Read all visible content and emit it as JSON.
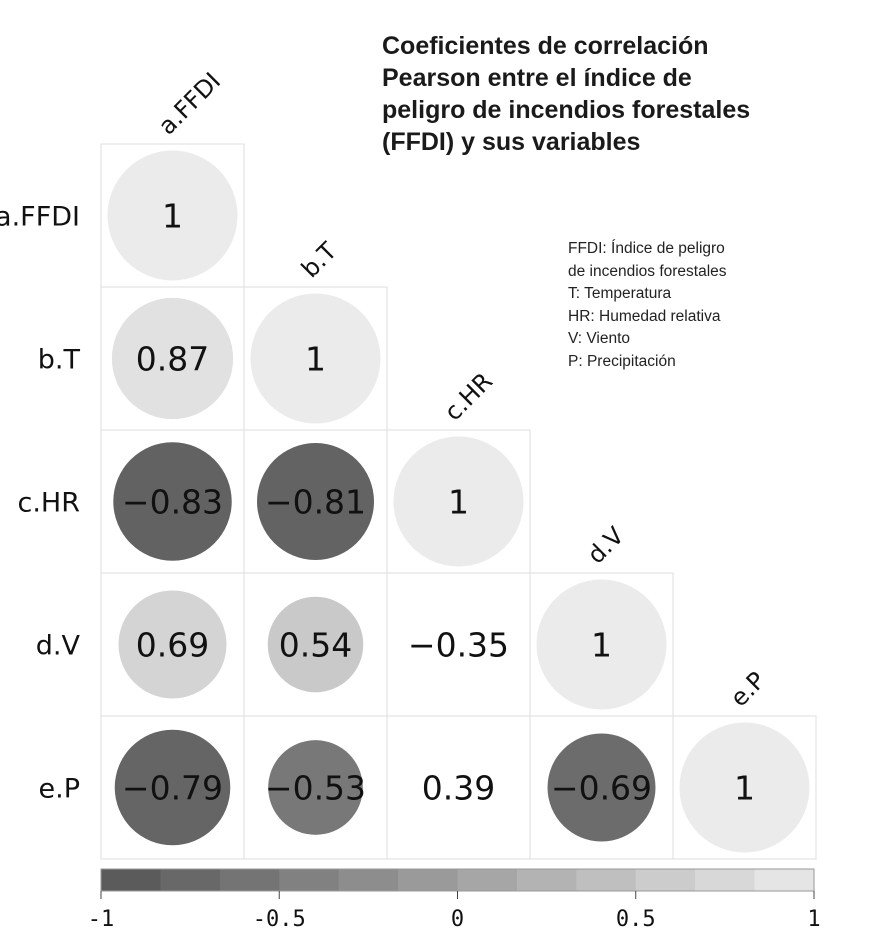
{
  "title_lines": [
    "Coeficientes de correlación",
    "Pearson entre el índice de",
    "peligro de incendios forestales",
    "(FFDI) y sus variables"
  ],
  "legend_notes": [
    "FFDI: Índice de peligro",
    "de incendios forestales",
    "T: Temperatura",
    "HR: Humedad relativa",
    "V: Viento",
    "P: Precipitación"
  ],
  "chart_data": {
    "type": "heatmap",
    "variables": [
      "a.FFDI",
      "b.T",
      "c.HR",
      "d.V",
      "e.P"
    ],
    "matrix": [
      [
        1,
        null,
        null,
        null,
        null
      ],
      [
        0.87,
        1,
        null,
        null,
        null
      ],
      [
        -0.83,
        -0.81,
        1,
        null,
        null
      ],
      [
        0.69,
        0.54,
        -0.35,
        1,
        null
      ],
      [
        -0.79,
        -0.53,
        0.39,
        -0.69,
        1
      ]
    ],
    "labels": [
      [
        "1",
        null,
        null,
        null,
        null
      ],
      [
        "0.87",
        "1",
        null,
        null,
        null
      ],
      [
        "−0.83",
        "−0.81",
        "1",
        null,
        null
      ],
      [
        "0.69",
        "0.54",
        "−0.35",
        "1",
        null
      ],
      [
        "−0.79",
        "−0.53",
        "0.39",
        "−0.69",
        "1"
      ]
    ],
    "significant": [
      [
        true,
        null,
        null,
        null,
        null
      ],
      [
        true,
        true,
        null,
        null,
        null
      ],
      [
        true,
        true,
        true,
        null,
        null
      ],
      [
        true,
        true,
        false,
        true,
        null
      ],
      [
        true,
        true,
        false,
        true,
        true
      ]
    ],
    "colorbar": {
      "range": [
        -1,
        1
      ],
      "ticks": [
        -1,
        -0.5,
        0,
        0.5,
        1
      ],
      "tick_labels": [
        "-1",
        "-0.5",
        "0",
        "0.5",
        "1"
      ],
      "steps": 12,
      "color_dark": "#555555",
      "color_light": "#ebebeb"
    },
    "grid_color": "#dddddd"
  }
}
